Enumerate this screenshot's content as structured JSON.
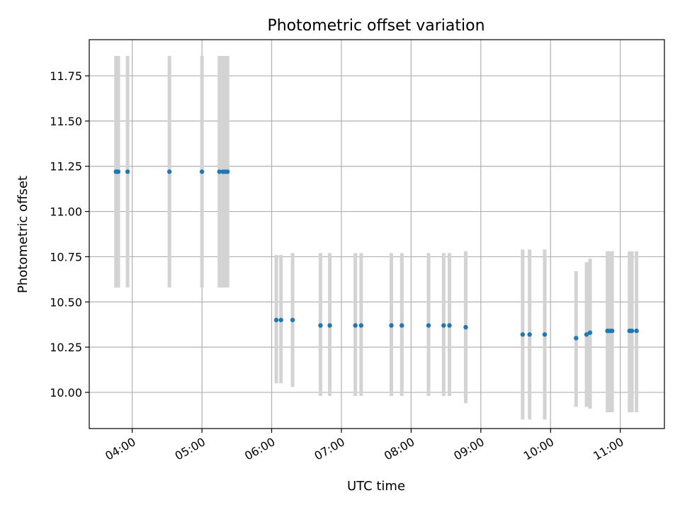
{
  "chart_data": {
    "type": "scatter",
    "title": "Photometric offset variation",
    "xlabel": "UTC time",
    "ylabel": "Photometric offset",
    "xlim": [
      "03:23",
      "11:38"
    ],
    "ylim": [
      9.8,
      11.95
    ],
    "grid": true,
    "legend": "none",
    "x_ticks": [
      "04:00",
      "05:00",
      "06:00",
      "07:00",
      "08:00",
      "09:00",
      "10:00",
      "11:00"
    ],
    "y_ticks": [
      "10.00",
      "10.25",
      "10.50",
      "10.75",
      "11.00",
      "11.25",
      "11.50",
      "11.75"
    ],
    "colors": {
      "point": "#1f77b4",
      "errorbar": "#d3d3d3"
    },
    "series": [
      {
        "points": [
          {
            "t": "03:46",
            "y": 11.22,
            "lo": 10.58,
            "hi": 11.86
          },
          {
            "t": "03:47",
            "y": 11.22,
            "lo": 10.58,
            "hi": 11.86
          },
          {
            "t": "03:48",
            "y": 11.22,
            "lo": 10.58,
            "hi": 11.86
          },
          {
            "t": "03:56",
            "y": 11.22,
            "lo": 10.58,
            "hi": 11.86
          },
          {
            "t": "04:32",
            "y": 11.22,
            "lo": 10.58,
            "hi": 11.86
          },
          {
            "t": "05:00",
            "y": 11.22,
            "lo": 10.58,
            "hi": 11.86
          },
          {
            "t": "05:15",
            "y": 11.22,
            "lo": 10.58,
            "hi": 11.86
          },
          {
            "t": "05:18",
            "y": 11.22,
            "lo": 10.58,
            "hi": 11.86
          },
          {
            "t": "05:20",
            "y": 11.22,
            "lo": 10.58,
            "hi": 11.86
          },
          {
            "t": "05:22",
            "y": 11.22,
            "lo": 10.58,
            "hi": 11.86
          },
          {
            "t": "06:04",
            "y": 10.4,
            "lo": 10.05,
            "hi": 10.76
          },
          {
            "t": "06:08",
            "y": 10.4,
            "lo": 10.05,
            "hi": 10.76
          },
          {
            "t": "06:18",
            "y": 10.4,
            "lo": 10.03,
            "hi": 10.77
          },
          {
            "t": "06:42",
            "y": 10.37,
            "lo": 9.98,
            "hi": 10.77
          },
          {
            "t": "06:50",
            "y": 10.37,
            "lo": 9.98,
            "hi": 10.77
          },
          {
            "t": "07:12",
            "y": 10.37,
            "lo": 9.98,
            "hi": 10.77
          },
          {
            "t": "07:17",
            "y": 10.37,
            "lo": 9.98,
            "hi": 10.77
          },
          {
            "t": "07:43",
            "y": 10.37,
            "lo": 9.98,
            "hi": 10.77
          },
          {
            "t": "07:52",
            "y": 10.37,
            "lo": 9.98,
            "hi": 10.77
          },
          {
            "t": "08:15",
            "y": 10.37,
            "lo": 9.98,
            "hi": 10.77
          },
          {
            "t": "08:28",
            "y": 10.37,
            "lo": 9.98,
            "hi": 10.77
          },
          {
            "t": "08:33",
            "y": 10.37,
            "lo": 9.98,
            "hi": 10.77
          },
          {
            "t": "08:47",
            "y": 10.36,
            "lo": 9.94,
            "hi": 10.78
          },
          {
            "t": "09:36",
            "y": 10.32,
            "lo": 9.85,
            "hi": 10.79
          },
          {
            "t": "09:42",
            "y": 10.32,
            "lo": 9.85,
            "hi": 10.79
          },
          {
            "t": "09:55",
            "y": 10.32,
            "lo": 9.85,
            "hi": 10.79
          },
          {
            "t": "10:22",
            "y": 10.3,
            "lo": 9.92,
            "hi": 10.67
          },
          {
            "t": "10:31",
            "y": 10.32,
            "lo": 9.92,
            "hi": 10.72
          },
          {
            "t": "10:34",
            "y": 10.33,
            "lo": 9.91,
            "hi": 10.74
          },
          {
            "t": "10:49",
            "y": 10.34,
            "lo": 9.89,
            "hi": 10.78
          },
          {
            "t": "10:51",
            "y": 10.34,
            "lo": 9.89,
            "hi": 10.78
          },
          {
            "t": "10:53",
            "y": 10.34,
            "lo": 9.89,
            "hi": 10.78
          },
          {
            "t": "11:08",
            "y": 10.34,
            "lo": 9.89,
            "hi": 10.78
          },
          {
            "t": "11:10",
            "y": 10.34,
            "lo": 9.89,
            "hi": 10.78
          },
          {
            "t": "11:14",
            "y": 10.34,
            "lo": 9.89,
            "hi": 10.78
          }
        ]
      }
    ]
  }
}
